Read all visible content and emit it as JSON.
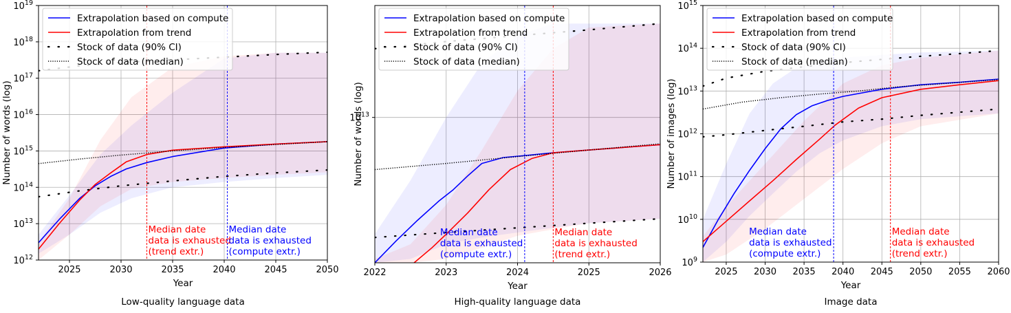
{
  "colors": {
    "compute": "#0000ff",
    "trend": "#ff0000",
    "stock": "#000000",
    "grid": "#b0b0b0"
  },
  "legend": {
    "compute": "Extrapolation based on compute",
    "trend": "Extrapolation from trend",
    "ci": "Stock of data (90% CI)",
    "median": "Stock of data (median)"
  },
  "chart_data": [
    {
      "type": "line",
      "title": "Low-quality language data",
      "xlabel": "Year",
      "ylabel": "Number of words (log)",
      "xlim": [
        2022,
        2050
      ],
      "ylim": [
        1000000000000.0,
        1e+19
      ],
      "yscale": "log",
      "xticks": [
        "2025",
        "2030",
        "2035",
        "2040",
        "2045",
        "2050"
      ],
      "xtick_values": [
        2025,
        2030,
        2035,
        2040,
        2045,
        2050
      ],
      "yticks": [
        {
          "base": "10",
          "exp": "12"
        },
        {
          "base": "10",
          "exp": "13"
        },
        {
          "base": "10",
          "exp": "14"
        },
        {
          "base": "10",
          "exp": "15"
        },
        {
          "base": "10",
          "exp": "16"
        },
        {
          "base": "10",
          "exp": "17"
        },
        {
          "base": "10",
          "exp": "18"
        },
        {
          "base": "10",
          "exp": "19"
        }
      ],
      "ytick_values": [
        1000000000000.0,
        10000000000000.0,
        100000000000000.0,
        1000000000000000.0,
        1e+16,
        1e+17,
        1e+18,
        1e+19
      ],
      "grid": true,
      "legend_position": "top-left",
      "series": [
        {
          "key": "compute",
          "x": [
            2022,
            2024,
            2026,
            2027.5,
            2029,
            2030.5,
            2032.5,
            2035,
            2040,
            2045,
            2050
          ],
          "y": [
            3000000000000.0,
            13000000000000.0,
            50000000000000.0,
            110000000000000.0,
            200000000000000.0,
            320000000000000.0,
            480000000000000.0,
            700000000000000.0,
            1200000000000000.0,
            1550000000000000.0,
            1800000000000000.0
          ]
        },
        {
          "key": "trend",
          "x": [
            2022,
            2024,
            2026,
            2027.5,
            2029,
            2030.5,
            2032.5,
            2035,
            2040,
            2045,
            2050
          ],
          "y": [
            2000000000000.0,
            10000000000000.0,
            45000000000000.0,
            120000000000000.0,
            250000000000000.0,
            500000000000000.0,
            800000000000000.0,
            1050000000000000.0,
            1300000000000000.0,
            1550000000000000.0,
            1800000000000000.0
          ]
        },
        {
          "key": "median",
          "x": [
            2022,
            2026,
            2030,
            2035,
            2040,
            2045,
            2050
          ],
          "y": [
            450000000000000.0,
            600000000000000.0,
            770000000000000.0,
            1000000000000000.0,
            1250000000000000.0,
            1500000000000000.0,
            1800000000000000.0
          ]
        },
        {
          "key": "ci_low",
          "x": [
            2022,
            2026,
            2030,
            2035,
            2040,
            2045,
            2050
          ],
          "y": [
            55000000000000.0,
            80000000000000.0,
            110000000000000.0,
            150000000000000.0,
            200000000000000.0,
            250000000000000.0,
            300000000000000.0
          ]
        },
        {
          "key": "ci_high",
          "x": [
            2022,
            2026,
            2030,
            2035,
            2040,
            2045,
            2050
          ],
          "y": [
            1.6e+17,
            2.2e+17,
            2.7e+17,
            3.2e+17,
            3.8e+17,
            4.5e+17,
            5.2e+17
          ]
        }
      ],
      "bands": [
        {
          "key": "compute",
          "x": [
            2022,
            2025,
            2028,
            2031,
            2035,
            2040,
            2045,
            2050
          ],
          "lo": [
            1500000000000.0,
            5000000000000.0,
            20000000000000.0,
            50000000000000.0,
            100000000000000.0,
            140000000000000.0,
            180000000000000.0,
            220000000000000.0
          ],
          "hi": [
            5000000000000.0,
            60000000000000.0,
            800000000000000.0,
            5000000000000000.0,
            4e+16,
            3.5e+17,
            5e+17,
            5e+17
          ]
        },
        {
          "key": "trend",
          "x": [
            2022,
            2025,
            2028,
            2031,
            2035,
            2040,
            2045,
            2050
          ],
          "lo": [
            1000000000000.0,
            5000000000000.0,
            30000000000000.0,
            90000000000000.0,
            140000000000000.0,
            180000000000000.0,
            220000000000000.0,
            260000000000000.0
          ],
          "hi": [
            3000000000000.0,
            50000000000000.0,
            2000000000000000.0,
            3e+16,
            2e+17,
            4e+17,
            5e+17,
            5e+17
          ]
        }
      ],
      "vlines": [
        {
          "key": "trend",
          "x": 2032.5,
          "text": [
            "Median date",
            "data is exhausted",
            "(trend extr.)"
          ]
        },
        {
          "key": "compute",
          "x": 2040.3,
          "text": [
            "Median date",
            "data is exhausted",
            "(compute extr.)"
          ]
        }
      ]
    },
    {
      "type": "line",
      "title": "High-quality language data",
      "xlabel": "Year",
      "ylabel": "Number of words (log)",
      "xlim": [
        2022,
        2026
      ],
      "ylim": [
        3700000000000.0,
        21500000000000.0
      ],
      "yscale": "log",
      "xticks": [
        "2022",
        "2023",
        "2024",
        "2025",
        "2026"
      ],
      "xtick_values": [
        2022,
        2023,
        2024,
        2025,
        2026
      ],
      "yticks": [
        {
          "base": "10",
          "exp": "13"
        }
      ],
      "ytick_values": [
        10000000000000.0
      ],
      "grid": true,
      "legend_position": "top-left",
      "series": [
        {
          "key": "compute",
          "x": [
            2022,
            2022.3,
            2022.6,
            2022.9,
            2023.1,
            2023.3,
            2023.5,
            2023.8,
            2024.1,
            2024.5,
            2025,
            2025.5,
            2026
          ],
          "y": [
            3700000000000.0,
            4300000000000.0,
            4950000000000.0,
            5650000000000.0,
            6100000000000.0,
            6700000000000.0,
            7300000000000.0,
            7600000000000.0,
            7700000000000.0,
            7850000000000.0,
            8000000000000.0,
            8150000000000.0,
            8300000000000.0
          ]
        },
        {
          "key": "trend",
          "x": [
            2022.55,
            2022.8,
            2023,
            2023.3,
            2023.6,
            2023.9,
            2024.2,
            2024.5,
            2025,
            2025.5,
            2026
          ],
          "y": [
            3700000000000.0,
            4100000000000.0,
            4500000000000.0,
            5200000000000.0,
            6100000000000.0,
            7000000000000.0,
            7550000000000.0,
            7850000000000.0,
            8000000000000.0,
            8150000000000.0,
            8300000000000.0
          ]
        },
        {
          "key": "median",
          "x": [
            2022,
            2023,
            2024,
            2025,
            2026
          ],
          "y": [
            7000000000000.0,
            7300000000000.0,
            7650000000000.0,
            8000000000000.0,
            8350000000000.0
          ]
        },
        {
          "key": "ci_low",
          "x": [
            2022,
            2023,
            2024,
            2025,
            2026
          ],
          "y": [
            4400000000000.0,
            4550000000000.0,
            4700000000000.0,
            4850000000000.0,
            5000000000000.0
          ]
        },
        {
          "key": "ci_high",
          "x": [
            2022,
            2023,
            2024,
            2025,
            2026
          ],
          "y": [
            16000000000000.0,
            16800000000000.0,
            17500000000000.0,
            18200000000000.0,
            19000000000000.0
          ]
        }
      ],
      "bands": [
        {
          "key": "compute",
          "x": [
            2022,
            2022.5,
            2023,
            2023.5,
            2024,
            2024.5,
            2025,
            2026
          ],
          "lo": [
            3700000000000.0,
            3800000000000.0,
            4200000000000.0,
            4400000000000.0,
            4550000000000.0,
            4700000000000.0,
            4850000000000.0,
            5000000000000.0
          ],
          "hi": [
            4500000000000.0,
            6500000000000.0,
            10000000000000.0,
            14500000000000.0,
            17500000000000.0,
            19000000000000.0,
            19000000000000.0,
            19000000000000.0
          ]
        },
        {
          "key": "trend",
          "x": [
            2022,
            2022.5,
            2023,
            2023.5,
            2024,
            2024.5,
            2025,
            2026
          ],
          "lo": [
            3700000000000.0,
            3700000000000.0,
            3800000000000.0,
            4100000000000.0,
            4450000000000.0,
            4650000000000.0,
            4850000000000.0,
            5000000000000.0
          ],
          "hi": [
            3800000000000.0,
            4200000000000.0,
            5500000000000.0,
            8000000000000.0,
            12000000000000.0,
            16000000000000.0,
            18500000000000.0,
            19000000000000.0
          ]
        }
      ],
      "vlines": [
        {
          "key": "compute",
          "x": 2024.1,
          "text": [
            "Median date",
            "data is exhausted",
            "(compute extr.)"
          ],
          "text_side": "left"
        },
        {
          "key": "trend",
          "x": 2024.5,
          "text": [
            "Median date",
            "data is exhausted",
            "(trend extr.)"
          ]
        }
      ]
    },
    {
      "type": "line",
      "title": "Image data",
      "xlabel": "Year",
      "ylabel": "Number of images (log)",
      "xlim": [
        2022,
        2060
      ],
      "ylim": [
        1000000000.0,
        1000000000000000.0
      ],
      "yscale": "log",
      "xticks": [
        "2025",
        "2030",
        "2035",
        "2040",
        "2045",
        "2050",
        "2055",
        "2060"
      ],
      "xtick_values": [
        2025,
        2030,
        2035,
        2040,
        2045,
        2050,
        2055,
        2060
      ],
      "yticks": [
        {
          "base": "10",
          "exp": "9"
        },
        {
          "base": "10",
          "exp": "10"
        },
        {
          "base": "10",
          "exp": "11"
        },
        {
          "base": "10",
          "exp": "12"
        },
        {
          "base": "10",
          "exp": "13"
        },
        {
          "base": "10",
          "exp": "14"
        },
        {
          "base": "10",
          "exp": "15"
        }
      ],
      "ytick_values": [
        1000000000.0,
        10000000000.0,
        100000000000.0,
        1000000000000.0,
        10000000000000.0,
        100000000000000.0,
        1000000000000000.0
      ],
      "grid": true,
      "legend_position": "top-left",
      "series": [
        {
          "key": "compute",
          "x": [
            2022,
            2024,
            2026,
            2028,
            2030,
            2032,
            2034,
            2036,
            2038,
            2040,
            2045,
            2050,
            2055,
            2060
          ],
          "y": [
            2200000000.0,
            10000000000.0,
            40000000000.0,
            140000000000.0,
            450000000000.0,
            1300000000000.0,
            2800000000000.0,
            4500000000000.0,
            6000000000000.0,
            7500000000000.0,
            11000000000000.0,
            14000000000000.0,
            16000000000000.0,
            19000000000000.0
          ]
        },
        {
          "key": "trend",
          "x": [
            2022,
            2025,
            2028,
            2031,
            2034,
            2037,
            2039,
            2042,
            2045,
            2050,
            2055,
            2060
          ],
          "y": [
            3000000000.0,
            9000000000.0,
            27000000000.0,
            80000000000.0,
            250000000000.0,
            750000000000.0,
            1600000000000.0,
            4000000000000.0,
            7000000000000.0,
            11000000000000.0,
            14000000000000.0,
            17500000000000.0
          ]
        },
        {
          "key": "median",
          "x": [
            2022,
            2027,
            2032,
            2037,
            2042,
            2047,
            2052,
            2060
          ],
          "y": [
            3800000000000.0,
            5500000000000.0,
            7000000000000.0,
            8500000000000.0,
            10000000000000.0,
            12500000000000.0,
            14500000000000.0,
            18500000000000.0
          ]
        },
        {
          "key": "ci_low",
          "x": [
            2022,
            2025,
            2030,
            2035,
            2040,
            2045,
            2050,
            2055,
            2060
          ],
          "y": [
            850000000000.0,
            950000000000.0,
            1200000000000.0,
            1500000000000.0,
            1900000000000.0,
            2200000000000.0,
            2700000000000.0,
            3200000000000.0,
            3800000000000.0
          ]
        },
        {
          "key": "ci_high",
          "x": [
            2022,
            2025,
            2030,
            2035,
            2040,
            2045,
            2050,
            2055,
            2060
          ],
          "y": [
            13000000000000.0,
            20000000000000.0,
            29000000000000.0,
            37000000000000.0,
            46000000000000.0,
            55000000000000.0,
            65000000000000.0,
            75000000000000.0,
            88000000000000.0
          ]
        }
      ],
      "bands": [
        {
          "key": "compute",
          "x": [
            2022,
            2025,
            2028,
            2031,
            2034,
            2037,
            2040,
            2045,
            2050,
            2060
          ],
          "lo": [
            1000000000.0,
            3000000000.0,
            12000000000.0,
            40000000000.0,
            130000000000.0,
            350000000000.0,
            700000000000.0,
            1500000000000.0,
            2200000000000.0,
            3000000000000.0
          ],
          "hi": [
            10000000000.0,
            200000000000.0,
            3000000000000.0,
            15000000000000.0,
            35000000000000.0,
            50000000000000.0,
            60000000000000.0,
            70000000000000.0,
            80000000000000.0,
            88000000000000.0
          ]
        },
        {
          "key": "trend",
          "x": [
            2022,
            2025,
            2030,
            2035,
            2040,
            2045,
            2050,
            2060
          ],
          "lo": [
            1000000000.0,
            1500000000.0,
            6000000000.0,
            30000000000.0,
            150000000000.0,
            600000000000.0,
            1500000000000.0,
            3000000000000.0
          ],
          "hi": [
            4000000000.0,
            20000000000.0,
            200000000000.0,
            2000000000000.0,
            15000000000000.0,
            40000000000000.0,
            60000000000000.0,
            88000000000000.0
          ]
        }
      ],
      "vlines": [
        {
          "key": "compute",
          "x": 2038.8,
          "text": [
            "Median date",
            "data is exhausted",
            "(compute extr.)"
          ],
          "text_side": "left"
        },
        {
          "key": "trend",
          "x": 2046.1,
          "text": [
            "Median date",
            "data is exhausted",
            "(trend extr.)"
          ]
        }
      ]
    }
  ]
}
